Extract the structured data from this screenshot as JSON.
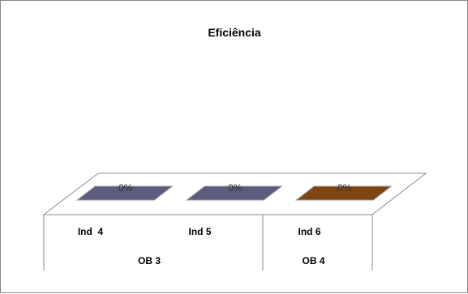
{
  "chart_data": {
    "type": "bar",
    "title": "Eficiência",
    "categories": [
      "Ind  4",
      "Ind 5",
      "Ind 6"
    ],
    "groups": [
      {
        "label": "OB 3",
        "categories": [
          "Ind  4",
          "Ind 5"
        ]
      },
      {
        "label": "OB 4",
        "categories": [
          "Ind 6"
        ]
      }
    ],
    "values": [
      0,
      0,
      0
    ],
    "data_labels": [
      "0%",
      "0%",
      "0%"
    ],
    "colors": [
      "#5c5c7e",
      "#5c5c7e",
      "#7f4615"
    ],
    "three_d": true,
    "legend": "none",
    "grid": false
  }
}
